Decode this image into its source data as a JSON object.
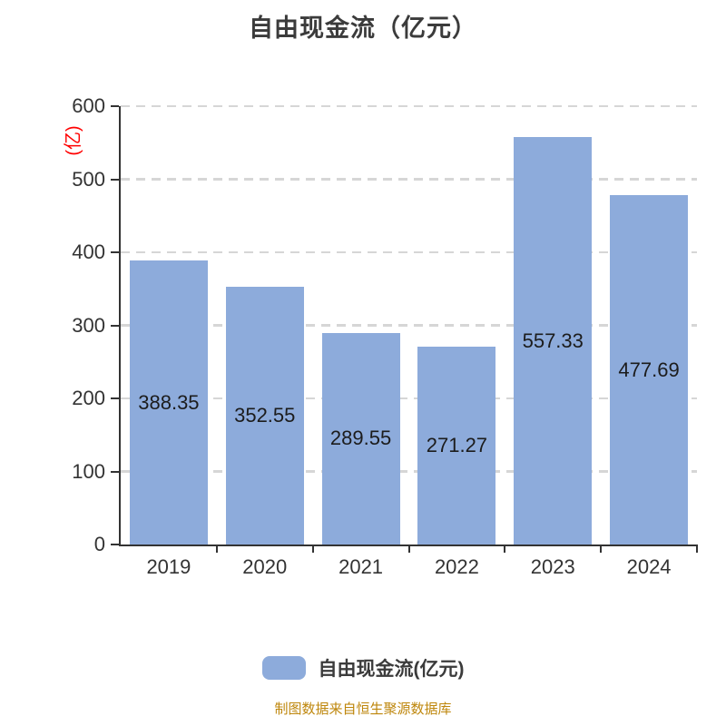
{
  "title": "自由现金流（亿元）",
  "y_axis_unit_label": "(亿)",
  "legend": {
    "label": "自由现金流(亿元)"
  },
  "footer_note": "制图数据来自恒生聚源数据库",
  "colors": {
    "bar": "#8DABDB",
    "title_text": "#3B3B3B",
    "axis": "#333333",
    "grid": "#D6D6D6",
    "tick_label": "#333333",
    "value_label": "#1C1C1C",
    "unit_label": "#FF0000",
    "footer_text": "#BE860B"
  },
  "chart_data": {
    "type": "bar",
    "categories": [
      "2019",
      "2020",
      "2021",
      "2022",
      "2023",
      "2024"
    ],
    "values": [
      388.35,
      352.55,
      289.55,
      271.27,
      557.33,
      477.69
    ],
    "title": "自由现金流（亿元）",
    "xlabel": "",
    "ylabel": "(亿)",
    "ylim": [
      0,
      600
    ],
    "ytick_step": 100,
    "grid": "horizontal-dashed",
    "gridlines_behind_bars": true,
    "legend_position": "bottom",
    "legend_entries": [
      "自由现金流(亿元)"
    ],
    "value_label_position": "inside-center",
    "value_label_decimals": 2
  }
}
